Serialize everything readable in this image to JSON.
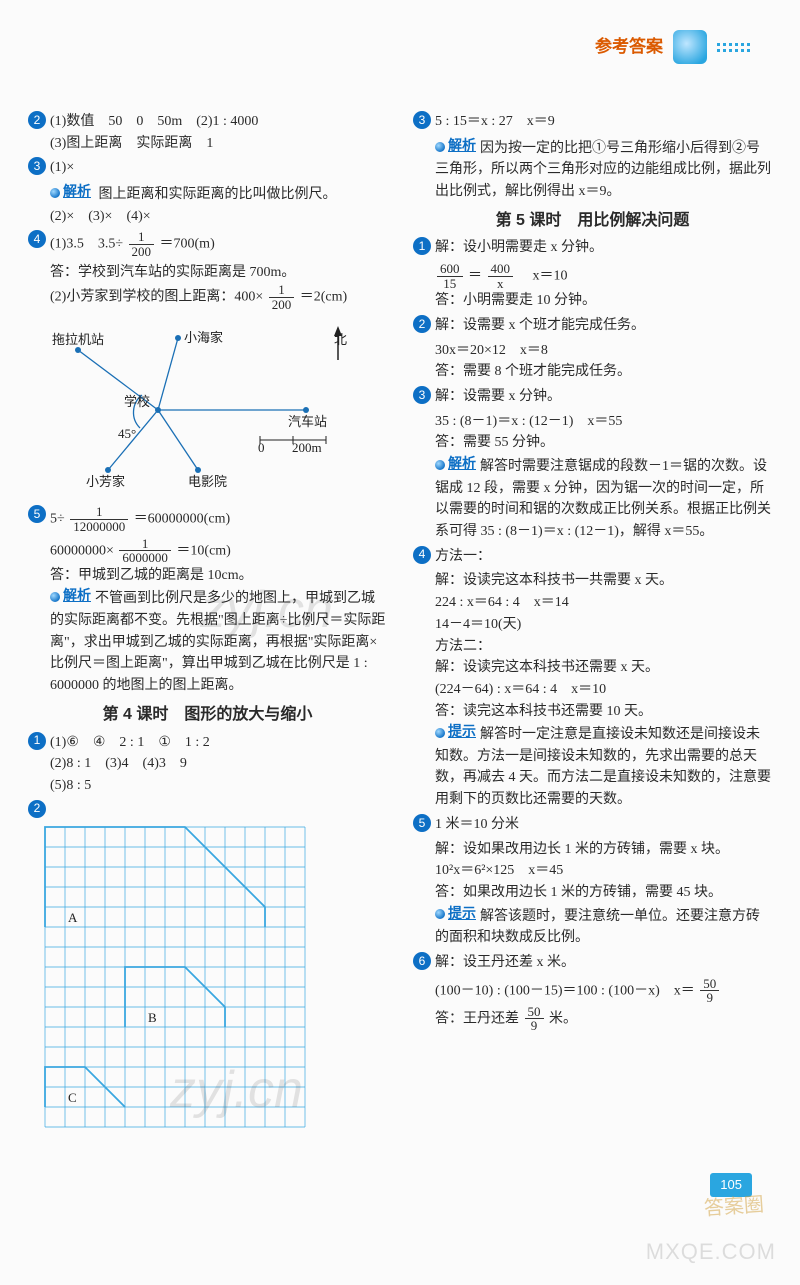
{
  "header": {
    "title": "参考答案"
  },
  "page_number": "105",
  "watermarks": {
    "wm1": "zyj.cn",
    "wm2": "zyj.cn",
    "footer_site": "MXQE.COM",
    "footer_badge": "答案圈"
  },
  "left": {
    "q2": {
      "line1": "(1)数值　50　0　50m　(2)1 : 4000",
      "line2": "(3)图上距离　实际距离　1"
    },
    "q3": {
      "head": "(1)×",
      "jx": "解析",
      "jx_text": "图上距离和实际距离的比叫做比例尺。",
      "rest": "(2)×　(3)×　(4)×"
    },
    "q4": {
      "line1_a": "(1)3.5　3.5÷",
      "frac1": {
        "n": "1",
        "d": "200"
      },
      "line1_b": "＝700(m)",
      "ans1": "答：学校到汽车站的实际距离是 700m。",
      "line2_a": "(2)小芳家到学校的图上距离：400×",
      "frac2": {
        "n": "1",
        "d": "200"
      },
      "line2_b": "＝2(cm)"
    },
    "diagram_labels": {
      "tractor": "拖拉机站",
      "xiaohai": "小海家",
      "north": "北",
      "school": "学校",
      "bus": "汽车站",
      "angle": "45°",
      "scale0": "0",
      "scale1": "200m",
      "xiaofang": "小芳家",
      "cinema": "电影院"
    },
    "q5": {
      "line1_a": "5÷",
      "frac1": {
        "n": "1",
        "d": "12000000"
      },
      "line1_b": "＝60000000(cm)",
      "line2_a": "60000000×",
      "frac2": {
        "n": "1",
        "d": "6000000"
      },
      "line2_b": "＝10(cm)",
      "ans": "答：甲城到乙城的距离是 10cm。",
      "jx": "解析",
      "jx_text": "不管画到比例尺是多少的地图上，甲城到乙城的实际距离都不变。先根据\"图上距离÷比例尺＝实际距离\"，求出甲城到乙城的实际距离，再根据\"实际距离×比例尺＝图上距离\"，算出甲城到乙城在比例尺是 1 : 6000000 的地图上的图上距离。"
    },
    "section4": "第 4 课时　图形的放大与缩小",
    "s4_q1": {
      "line1": "(1)⑥　④　2 : 1　①　1 : 2",
      "line2": "(2)8 : 1　(3)4　(4)3　9",
      "line3": "(5)8 : 5"
    },
    "grid": {
      "cols": 13,
      "rows": 15,
      "cell": 20,
      "stroke": "#3aa7e0",
      "shapes": [
        {
          "label": "A",
          "points": [
            [
              0,
              5
            ],
            [
              0,
              0
            ],
            [
              7,
              0
            ],
            [
              11,
              4
            ],
            [
              11,
              5
            ]
          ]
        },
        {
          "label": "B",
          "points": [
            [
              4,
              10
            ],
            [
              4,
              7
            ],
            [
              7,
              7
            ],
            [
              9,
              9
            ],
            [
              9,
              10
            ]
          ]
        },
        {
          "label": "C",
          "points": [
            [
              0,
              14
            ],
            [
              0,
              12
            ],
            [
              2,
              12
            ],
            [
              4,
              14
            ]
          ]
        }
      ]
    }
  },
  "right": {
    "q3": {
      "line1": "5 : 15＝x : 27　x＝9",
      "jx": "解析",
      "jx_text": "因为按一定的比把①号三角形缩小后得到②号三角形，所以两个三角形对应的边能组成比例，据此列出比例式，解比例得出 x＝9。"
    },
    "section5": "第 5 课时　用比例解决问题",
    "q1": {
      "line1": "解：设小明需要走 x 分钟。",
      "frac_l": {
        "n": "600",
        "d": "15"
      },
      "eq": "＝",
      "frac_r": {
        "n": "400",
        "d": "x"
      },
      "line2_b": "　x＝10",
      "ans": "答：小明需要走 10 分钟。"
    },
    "q2": {
      "line1": "解：设需要 x 个班才能完成任务。",
      "line2": "30x＝20×12　x＝8",
      "ans": "答：需要 8 个班才能完成任务。"
    },
    "q3b": {
      "line1": "解：设需要 x 分钟。",
      "line2": "35 : (8－1)＝x : (12－1)　x＝55",
      "ans": "答：需要 55 分钟。",
      "jx": "解析",
      "jx_text": "解答时需要注意锯成的段数－1＝锯的次数。设锯成 12 段，需要 x 分钟，因为锯一次的时间一定，所以需要的时间和锯的次数成正比例关系。根据正比例关系可得 35 : (8－1)＝x : (12－1)，解得 x＝55。"
    },
    "q4": {
      "m1": "方法一：",
      "m1_1": "解：设读完这本科技书一共需要 x 天。",
      "m1_2": "224 : x＝64 : 4　x＝14",
      "m1_3": "14－4＝10(天)",
      "m2": "方法二：",
      "m2_1": "解：设读完这本科技书还需要 x 天。",
      "m2_2": "(224－64) : x＝64 : 4　x＝10",
      "ans": "答：读完这本科技书还需要 10 天。",
      "ts": "提示",
      "ts_text": "解答时一定注意是直接设未知数还是间接设未知数。方法一是间接设未知数的，先求出需要的总天数，再减去 4 天。而方法二是直接设未知数的，注意要用剩下的页数比还需要的天数。"
    },
    "q5": {
      "line1": "1 米＝10 分米",
      "line2": "解：设如果改用边长 1 米的方砖铺，需要 x 块。",
      "line3": "10²x＝6²×125　x＝45",
      "ans": "答：如果改用边长 1 米的方砖铺，需要 45 块。",
      "ts": "提示",
      "ts_text": "解答该题时，要注意统一单位。还要注意方砖的面积和块数成反比例。"
    },
    "q6": {
      "line1": "解：设王丹还差 x 米。",
      "line2_a": "(100－10) : (100－15)＝100 : (100－x)　x＝",
      "frac": {
        "n": "50",
        "d": "9"
      },
      "ans_a": "答：王丹还差",
      "ans_frac": {
        "n": "50",
        "d": "9"
      },
      "ans_b": "米。"
    }
  }
}
